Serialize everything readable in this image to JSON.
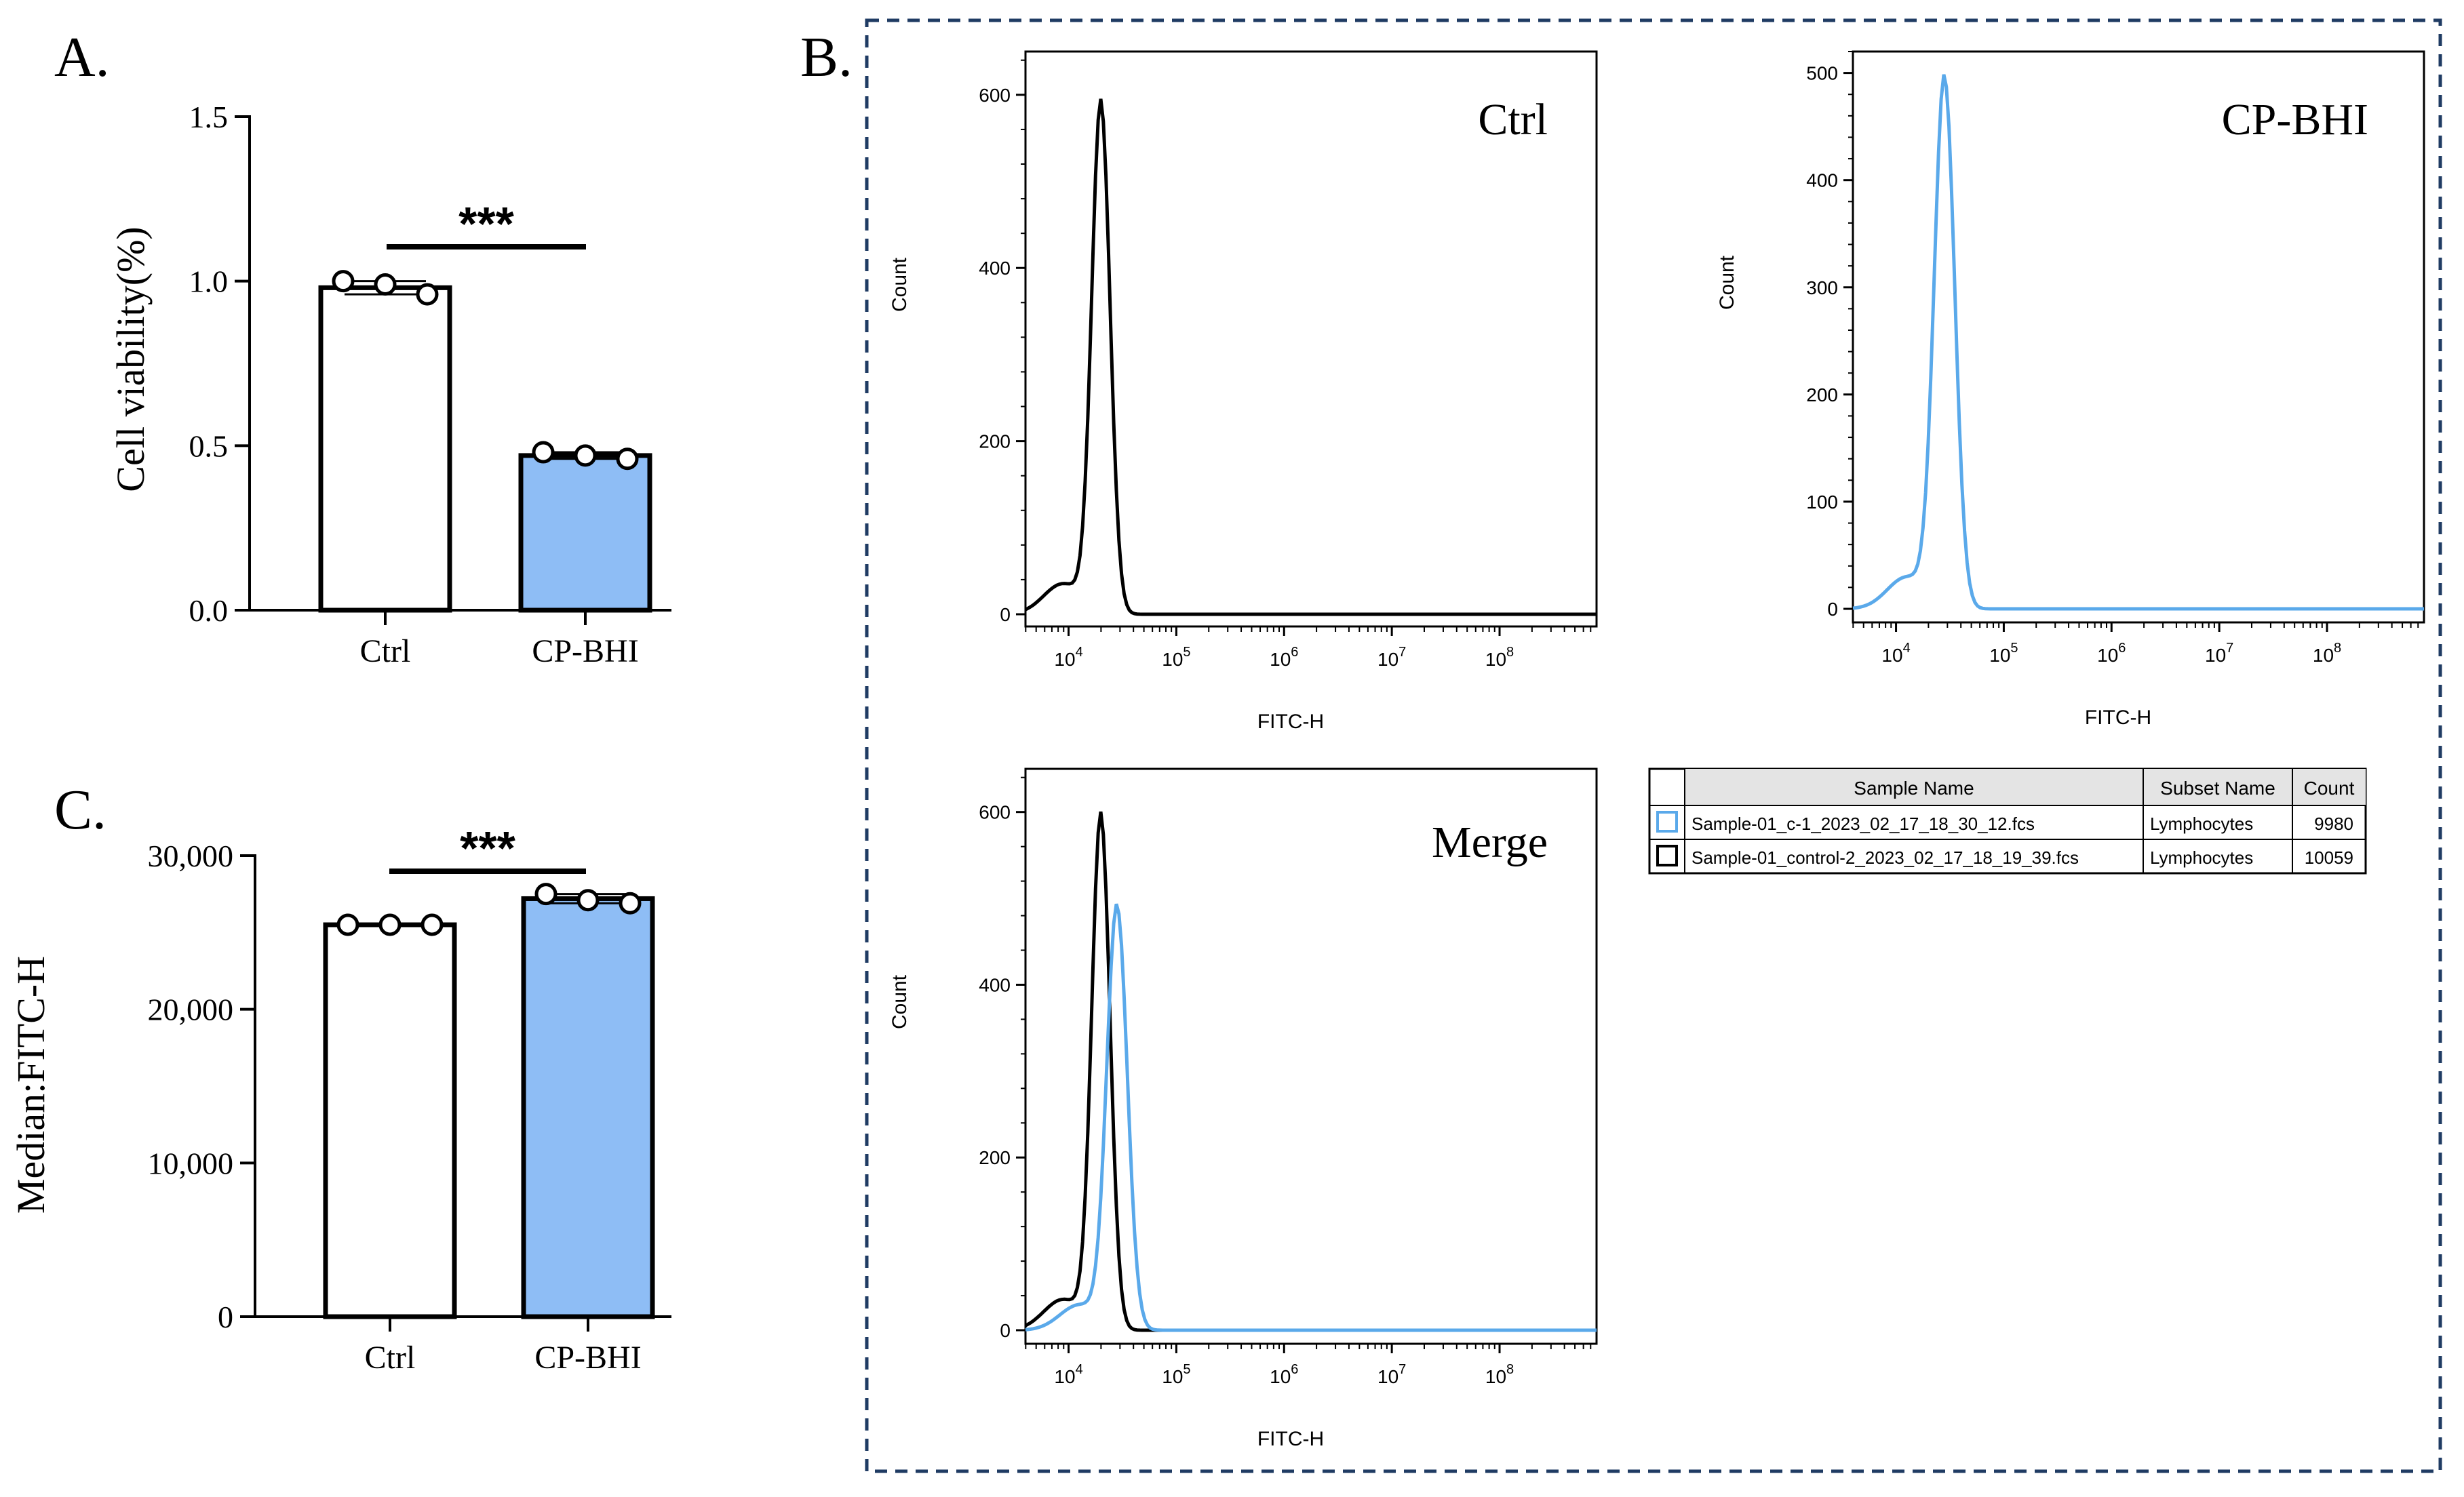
{
  "panels": {
    "A": "A.",
    "B": "B.",
    "C": "C."
  },
  "colors": {
    "blue": "#8ebdf5",
    "flow_blue": "#5aa9ea",
    "black": "#000000",
    "frame": "#1f3b63"
  },
  "chart_data": [
    {
      "id": "A",
      "type": "bar",
      "categories": [
        "Ctrl",
        "CP-BHI"
      ],
      "values": [
        0.98,
        0.47
      ],
      "points": [
        [
          1.0,
          0.99,
          0.96
        ],
        [
          0.48,
          0.47,
          0.46
        ]
      ],
      "ylabel": "Cell viability(%)",
      "ylim": [
        0,
        1.5
      ],
      "yticks": [
        "0.0",
        "0.5",
        "1.0",
        "1.5"
      ],
      "yticks_values": [
        0,
        0.5,
        1.0,
        1.5
      ],
      "significance": "***"
    },
    {
      "id": "C",
      "type": "bar",
      "categories": [
        "Ctrl",
        "CP-BHI"
      ],
      "values": [
        25500,
        27200
      ],
      "points": [
        [
          25500,
          25500,
          25500
        ],
        [
          27500,
          27100,
          26900
        ]
      ],
      "ylabel": "Median:FITC-H",
      "ylim": [
        0,
        30000
      ],
      "yticks": [
        "0",
        "10,000",
        "20,000",
        "30,000"
      ],
      "yticks_values": [
        0,
        10000,
        20000,
        30000
      ],
      "significance": "***"
    },
    {
      "id": "B1",
      "type": "line",
      "title": "Ctrl",
      "xlabel": "FITC-H",
      "ylabel": "Count",
      "ylim": [
        0,
        650
      ],
      "yticks": [
        0,
        200,
        400,
        600
      ],
      "xticks": [
        "10^4",
        "10^5",
        "10^6",
        "10^7",
        "10^8"
      ],
      "series": [
        {
          "name": "control",
          "color": "#000000",
          "peak_log10": 4.3,
          "peak_count": 590
        }
      ]
    },
    {
      "id": "B2",
      "type": "line",
      "title": "CP-BHI",
      "xlabel": "FITC-H",
      "ylabel": "Count",
      "ylim": [
        0,
        520
      ],
      "yticks": [
        0,
        100,
        200,
        300,
        400,
        500
      ],
      "xticks": [
        "10^4",
        "10^5",
        "10^6",
        "10^7",
        "10^8"
      ],
      "series": [
        {
          "name": "c-1",
          "color": "#5aa9ea",
          "peak_log10": 4.45,
          "peak_count": 495
        }
      ]
    },
    {
      "id": "B3",
      "type": "line",
      "title": "Merge",
      "xlabel": "FITC-H",
      "ylabel": "Count",
      "ylim": [
        0,
        650
      ],
      "yticks": [
        0,
        200,
        400,
        600
      ],
      "xticks": [
        "10^4",
        "10^5",
        "10^6",
        "10^7",
        "10^8"
      ],
      "series": [
        {
          "name": "control",
          "color": "#000000",
          "peak_log10": 4.3,
          "peak_count": 595
        },
        {
          "name": "c-1",
          "color": "#5aa9ea",
          "peak_log10": 4.45,
          "peak_count": 490
        }
      ]
    }
  ],
  "legend_table": {
    "headers": [
      "",
      "Sample Name",
      "Subset Name",
      "Count"
    ],
    "rows": [
      {
        "color": "#5aa9ea",
        "sample": "Sample-01_c-1_2023_02_17_18_30_12.fcs",
        "subset": "Lymphocytes",
        "count": "9980"
      },
      {
        "color": "#000000",
        "sample": "Sample-01_control-2_2023_02_17_18_19_39.fcs",
        "subset": "Lymphocytes",
        "count": "10059"
      }
    ]
  }
}
